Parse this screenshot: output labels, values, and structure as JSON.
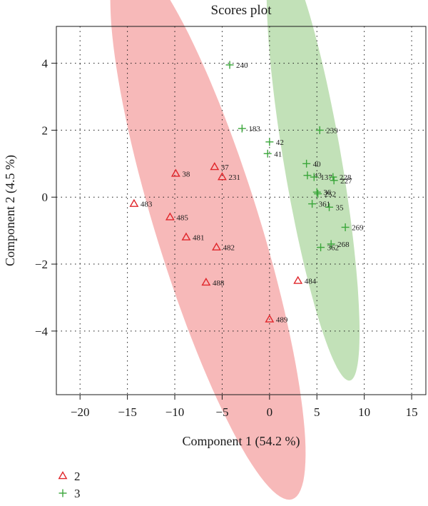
{
  "chart_data": {
    "type": "scatter",
    "title": "Scores plot",
    "xlabel": "Component 1 (54.2 %)",
    "ylabel": "Component 2 (4.5 %)",
    "xlim": [
      -22.5,
      16.5
    ],
    "ylim": [
      -5.9,
      5.1
    ],
    "xticks": [
      -20,
      -15,
      -10,
      -5,
      0,
      5,
      10,
      15
    ],
    "yticks": [
      -4,
      -2,
      0,
      2,
      4
    ],
    "xtick_labels": [
      "−20",
      "−15",
      "−10",
      "−5",
      "0",
      "5",
      "10",
      "15"
    ],
    "ytick_labels": [
      "−4",
      "−2",
      "0",
      "2",
      "4"
    ],
    "grid": true,
    "legend_position": "bottom-left",
    "series": [
      {
        "name": "2",
        "marker": "triangle",
        "color": "#e0262b",
        "fill": "#f08080",
        "ellipse": {
          "cx": -6.5,
          "cy": -0.9,
          "rx": 12.6,
          "ry": 3.7,
          "angle_deg": -37
        },
        "points": [
          {
            "label": "37",
            "x": -5.8,
            "y": 0.9
          },
          {
            "label": "38",
            "x": -9.9,
            "y": 0.7
          },
          {
            "label": "231",
            "x": -5.0,
            "y": 0.6
          },
          {
            "label": "483",
            "x": -14.3,
            "y": -0.2
          },
          {
            "label": "485",
            "x": -10.5,
            "y": -0.6
          },
          {
            "label": "481",
            "x": -8.8,
            "y": -1.2
          },
          {
            "label": "482",
            "x": -5.6,
            "y": -1.5
          },
          {
            "label": "488",
            "x": -6.7,
            "y": -2.55
          },
          {
            "label": "484",
            "x": 3.0,
            "y": -2.5
          },
          {
            "label": "489",
            "x": 0.0,
            "y": -3.65
          }
        ]
      },
      {
        "name": "3",
        "marker": "plus",
        "color": "#3aa63a",
        "fill": "#90c97e",
        "ellipse": {
          "cx": 4.6,
          "cy": 1.0,
          "rx": 7.7,
          "ry": 2.6,
          "angle_deg": -55
        },
        "points": [
          {
            "label": "240",
            "x": -4.2,
            "y": 3.95
          },
          {
            "label": "183",
            "x": -2.9,
            "y": 2.05
          },
          {
            "label": "239",
            "x": 5.3,
            "y": 2.0
          },
          {
            "label": "42",
            "x": 0.0,
            "y": 1.65
          },
          {
            "label": "41",
            "x": -0.2,
            "y": 1.3
          },
          {
            "label": "40",
            "x": 3.9,
            "y": 1.0
          },
          {
            "label": "43",
            "x": 4.0,
            "y": 0.65
          },
          {
            "label": "137",
            "x": 4.7,
            "y": 0.6
          },
          {
            "label": "228",
            "x": 6.7,
            "y": 0.6
          },
          {
            "label": "227",
            "x": 6.8,
            "y": 0.5
          },
          {
            "label": "36",
            "x": 5.0,
            "y": 0.15
          },
          {
            "label": "252",
            "x": 5.1,
            "y": 0.1
          },
          {
            "label": "361",
            "x": 4.5,
            "y": -0.2
          },
          {
            "label": "35",
            "x": 6.3,
            "y": -0.3
          },
          {
            "label": "269",
            "x": 8.0,
            "y": -0.9
          },
          {
            "label": "268",
            "x": 6.5,
            "y": -1.4
          },
          {
            "label": "362",
            "x": 5.4,
            "y": -1.5
          }
        ]
      }
    ]
  }
}
